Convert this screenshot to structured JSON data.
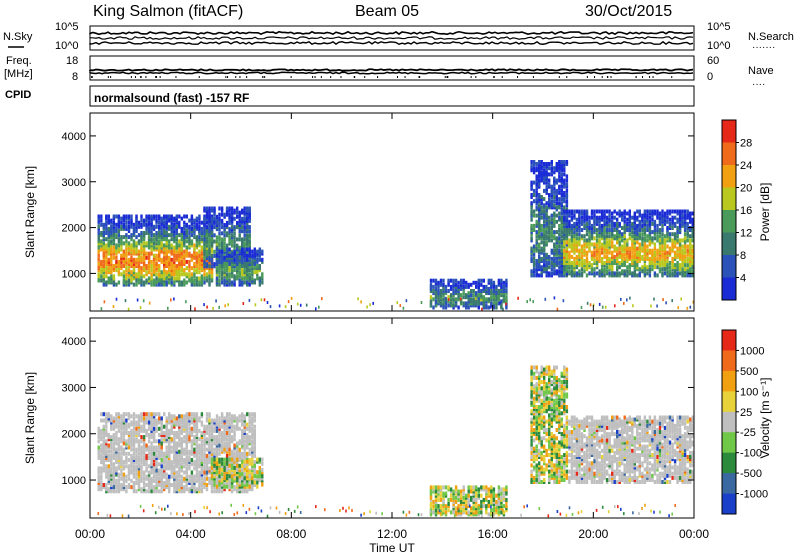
{
  "header": {
    "station": "King Salmon (fitACF)",
    "beam": "Beam 05",
    "date": "30/Oct/2015"
  },
  "top_strip": {
    "left_label": "N.Sky",
    "right_label": "N.Search",
    "right_dots": "·······",
    "left_ticks": [
      "10^5",
      "10^0"
    ],
    "right_ticks": [
      "10^5",
      "10^0"
    ]
  },
  "freq_strip": {
    "label_line1": "Freq.",
    "label_line2": "[MHz]",
    "left_ticks": [
      "18",
      "8"
    ],
    "right_label": "Nave",
    "right_dots": "····",
    "right_ticks": [
      "60",
      "0"
    ]
  },
  "cpid": {
    "label": "CPID",
    "text": "normalsound (fast) -157 RF"
  },
  "x_axis": {
    "title": "Time UT",
    "ticks": [
      "00:00",
      "04:00",
      "08:00",
      "12:00",
      "16:00",
      "20:00",
      "00:00"
    ]
  },
  "colors": {
    "power_scale": [
      "#1a2bd6",
      "#2a52b8",
      "#3a7a6e",
      "#4a9a5a",
      "#b9c81e",
      "#f0a010",
      "#ef6a1a",
      "#e62818"
    ],
    "velocity_scale": [
      "#1a3fc8",
      "#3a68a0",
      "#2c8a3c",
      "#70c848",
      "#bfbfbf",
      "#e8d23a",
      "#f0a010",
      "#ef6a1a",
      "#e62818"
    ],
    "ground_scatter": "#bfbfbf"
  },
  "chart_data": [
    {
      "type": "heatmap",
      "panel": "power",
      "ylabel": "Slant Range [km]",
      "ylim": [
        180,
        4500
      ],
      "yticks": [
        1000,
        2000,
        3000,
        4000
      ],
      "xlim_hours": [
        0,
        24
      ],
      "colorbar": {
        "label": "Power [dB]",
        "ticks": [
          "28",
          "24",
          "20",
          "16",
          "12",
          "8",
          "4"
        ],
        "range": [
          0,
          32
        ]
      },
      "regions": [
        {
          "t0": 0.3,
          "t1": 4.8,
          "r0": 800,
          "r1": 2300,
          "peak_db": 26
        },
        {
          "t0": 4.5,
          "t1": 6.3,
          "r0": 1200,
          "r1": 2500,
          "peak_db": 12
        },
        {
          "t0": 5.0,
          "t1": 6.8,
          "r0": 800,
          "r1": 1600,
          "peak_db": 14
        },
        {
          "t0": 13.5,
          "t1": 16.5,
          "r0": 300,
          "r1": 900,
          "peak_db": 12
        },
        {
          "t0": 17.5,
          "t1": 19.0,
          "r0": 1000,
          "r1": 3500,
          "peak_db": 10
        },
        {
          "t0": 18.8,
          "t1": 24.0,
          "r0": 1000,
          "r1": 2400,
          "peak_db": 22
        }
      ]
    },
    {
      "type": "heatmap",
      "panel": "velocity",
      "ylabel": "Slant Range [km]",
      "ylim": [
        180,
        4500
      ],
      "yticks": [
        1000,
        2000,
        3000,
        4000
      ],
      "xlim_hours": [
        0,
        24
      ],
      "colorbar": {
        "label": "Velocity [m s⁻¹]",
        "ticks": [
          "1000",
          "500",
          "100",
          "25",
          "-25",
          "-100",
          "-500",
          "-1000"
        ],
        "range": [
          -1000,
          1000
        ]
      },
      "regions": [
        {
          "t0": 0.3,
          "t1": 6.5,
          "r0": 800,
          "r1": 2500,
          "kind": "ground"
        },
        {
          "t0": 4.8,
          "t1": 6.8,
          "r0": 900,
          "r1": 1500,
          "kind": "mixed"
        },
        {
          "t0": 13.5,
          "t1": 16.5,
          "r0": 300,
          "r1": 900,
          "kind": "mixed"
        },
        {
          "t0": 17.5,
          "t1": 19.0,
          "r0": 1000,
          "r1": 3500,
          "kind": "mixed"
        },
        {
          "t0": 19.0,
          "t1": 24.0,
          "r0": 1000,
          "r1": 2400,
          "kind": "ground"
        }
      ]
    }
  ]
}
